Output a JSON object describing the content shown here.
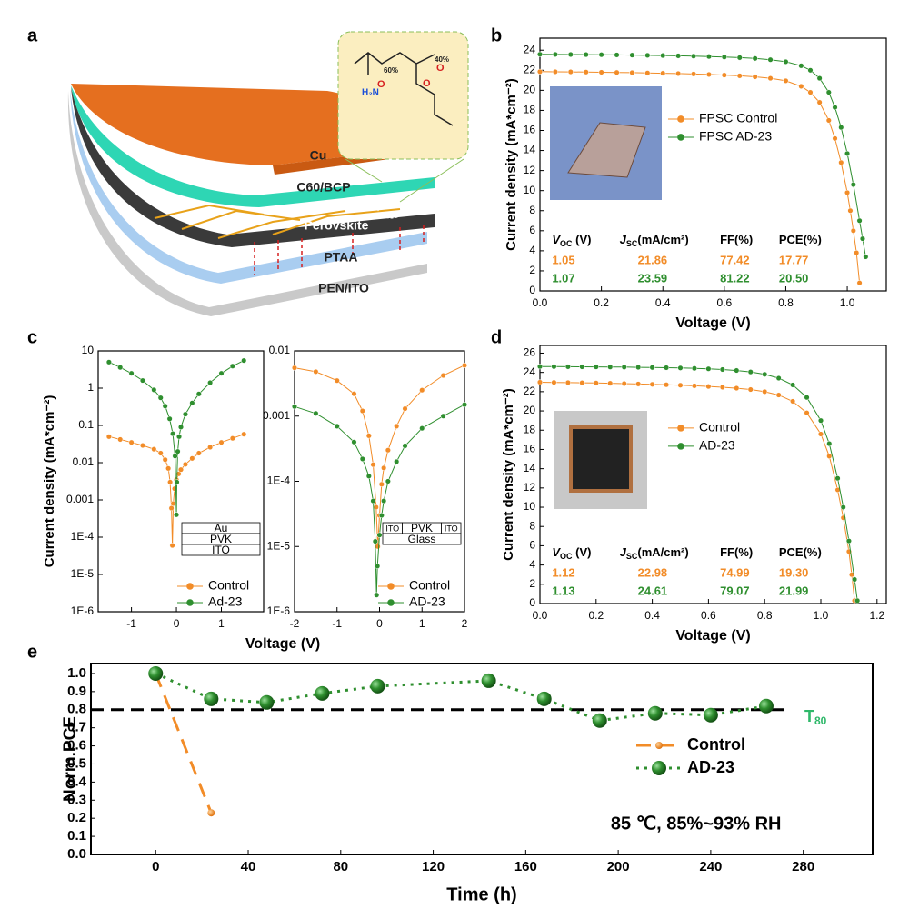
{
  "panel_labels": [
    "a",
    "b",
    "c",
    "d",
    "e"
  ],
  "diagram": {
    "layers": [
      "Cu",
      "C60/BCP",
      "Perovskite",
      "PTAA",
      "PEN/ITO"
    ],
    "molecule": [
      "60%",
      "40%",
      "H₂N",
      "O",
      "O",
      "O"
    ]
  },
  "chart_data": [
    {
      "type": "line",
      "xlabel": "Voltage (V)",
      "ylabel": "Current density (mA*cm⁻²)",
      "xlim": [
        0,
        1.127
      ],
      "ylim": [
        0,
        25.2
      ],
      "xticks": [
        {
          "value": 0,
          "label": "0.0"
        },
        0.2,
        0.4,
        0.6,
        0.8,
        {
          "value": 1,
          "label": "1.0"
        }
      ],
      "yticks": [
        0,
        2,
        4,
        6,
        8,
        10,
        12,
        14,
        16,
        18,
        20,
        22,
        24
      ],
      "legend": "center",
      "series": [
        {
          "name": "FPSC Control",
          "color": "#f28c28",
          "x": [
            0,
            0.05,
            0.1,
            0.15,
            0.2,
            0.25,
            0.3,
            0.35,
            0.4,
            0.45,
            0.5,
            0.55,
            0.6,
            0.65,
            0.7,
            0.75,
            0.8,
            0.85,
            0.88,
            0.91,
            0.94,
            0.96,
            0.98,
            1.0,
            1.01,
            1.02,
            1.03,
            1.04
          ],
          "values": [
            21.86,
            21.85,
            21.84,
            21.82,
            21.8,
            21.78,
            21.76,
            21.73,
            21.7,
            21.67,
            21.63,
            21.58,
            21.52,
            21.45,
            21.35,
            21.2,
            20.95,
            20.4,
            19.8,
            18.8,
            17.0,
            15.2,
            12.8,
            9.8,
            8.0,
            6.0,
            3.8,
            0.8
          ]
        },
        {
          "name": "FPSC AD-23",
          "color": "#2f8f2f",
          "x": [
            0,
            0.05,
            0.1,
            0.15,
            0.2,
            0.25,
            0.3,
            0.35,
            0.4,
            0.45,
            0.5,
            0.55,
            0.6,
            0.65,
            0.7,
            0.75,
            0.8,
            0.85,
            0.88,
            0.91,
            0.94,
            0.96,
            0.98,
            1.0,
            1.02,
            1.04,
            1.05,
            1.06
          ],
          "values": [
            23.59,
            23.58,
            23.57,
            23.56,
            23.55,
            23.53,
            23.51,
            23.49,
            23.47,
            23.44,
            23.41,
            23.37,
            23.32,
            23.26,
            23.18,
            23.05,
            22.85,
            22.45,
            22.0,
            21.2,
            19.8,
            18.3,
            16.3,
            13.7,
            10.6,
            7.0,
            5.2,
            3.4
          ]
        }
      ],
      "table": {
        "headers": [
          [
            "V",
            "OC",
            " (V)"
          ],
          [
            "J",
            "SC",
            "(mA/cm²)"
          ],
          [
            "FF(%)"
          ],
          [
            "PCE(%)"
          ]
        ],
        "rows": [
          {
            "color": "#f28c28",
            "cells": [
              "1.05",
              "21.86",
              "77.42",
              "17.77"
            ]
          },
          {
            "color": "#2f8f2f",
            "cells": [
              "1.07",
              "23.59",
              "81.22",
              "20.50"
            ]
          }
        ]
      }
    },
    {
      "type": "line",
      "xlabel": "Voltage (V)",
      "ylabel": "Current density (mA*cm⁻²)",
      "yscale": "log",
      "xlim": [
        -1.74,
        1.94
      ],
      "ylim": [
        1e-06,
        10
      ],
      "xticks": [
        -1,
        0,
        1
      ],
      "yticks": [
        10,
        1,
        0.1,
        0.01,
        0.001,
        {
          "value": 0.0001,
          "label": "1E-4"
        },
        {
          "value": 1e-05,
          "label": "1E-5"
        },
        {
          "value": 1e-06,
          "label": "1E-6"
        }
      ],
      "legend": "lower-right",
      "series": [
        {
          "name": "Control",
          "color": "#f28c28",
          "x": [
            -1.5,
            -1.25,
            -1,
            -0.75,
            -0.5,
            -0.35,
            -0.25,
            -0.18,
            -0.14,
            -0.11,
            -0.09,
            -0.07,
            -0.04,
            0,
            0.05,
            0.1,
            0.2,
            0.35,
            0.5,
            0.75,
            1,
            1.25,
            1.5
          ],
          "values": [
            0.05,
            0.042,
            0.035,
            0.029,
            0.023,
            0.018,
            0.012,
            0.007,
            0.003,
            0.0006,
            6e-05,
            0.0008,
            0.002,
            0.0035,
            0.005,
            0.0065,
            0.009,
            0.013,
            0.018,
            0.026,
            0.035,
            0.045,
            0.058
          ]
        },
        {
          "name": "Ad-23",
          "color": "#2f8f2f",
          "x": [
            -1.5,
            -1.25,
            -1,
            -0.75,
            -0.5,
            -0.35,
            -0.25,
            -0.15,
            -0.08,
            -0.03,
            0,
            0.01,
            0.03,
            0.06,
            0.1,
            0.2,
            0.35,
            0.5,
            0.75,
            1,
            1.25,
            1.5
          ],
          "values": [
            5,
            3.6,
            2.5,
            1.6,
            0.9,
            0.55,
            0.33,
            0.15,
            0.06,
            0.015,
            0.0004,
            0.003,
            0.02,
            0.05,
            0.09,
            0.2,
            0.4,
            0.7,
            1.4,
            2.5,
            3.9,
            5.5
          ]
        }
      ],
      "inset_stack": [
        [
          "Au"
        ],
        [
          "PVK"
        ],
        [
          "ITO"
        ]
      ]
    },
    {
      "type": "line",
      "yscale": "log",
      "xlim": [
        -2,
        2
      ],
      "ylim": [
        1e-06,
        0.01
      ],
      "xticks": [
        -2,
        -1,
        0,
        1,
        2
      ],
      "yticks": [
        0.01,
        0.001,
        {
          "value": 0.0001,
          "label": "1E-4"
        },
        {
          "value": 1e-05,
          "label": "1E-5"
        },
        {
          "value": 1e-06,
          "label": "1E-6"
        }
      ],
      "legend": "lower-right",
      "series": [
        {
          "name": "Control",
          "color": "#f28c28",
          "x": [
            -2,
            -1.5,
            -1,
            -0.6,
            -0.4,
            -0.25,
            -0.15,
            -0.08,
            -0.04,
            0,
            0.05,
            0.1,
            0.2,
            0.4,
            0.6,
            1,
            1.5,
            2
          ],
          "values": [
            0.0055,
            0.0048,
            0.0035,
            0.0022,
            0.0012,
            0.0005,
            0.00018,
            4e-05,
            1e-05,
            3e-05,
            9e-05,
            0.00016,
            0.0003,
            0.0007,
            0.0013,
            0.0025,
            0.0042,
            0.006
          ]
        },
        {
          "name": "AD-23",
          "color": "#2f8f2f",
          "x": [
            -2,
            -1.5,
            -1,
            -0.6,
            -0.4,
            -0.25,
            -0.15,
            -0.1,
            -0.07,
            -0.05,
            0,
            0.05,
            0.1,
            0.2,
            0.4,
            0.6,
            1,
            1.5,
            2
          ],
          "values": [
            0.0014,
            0.0011,
            0.0007,
            0.0004,
            0.00022,
            0.00012,
            5e-05,
            1.2e-05,
            1.8e-06,
            5e-06,
            1.5e-05,
            3e-05,
            5e-05,
            0.0001,
            0.0002,
            0.00035,
            0.00065,
            0.001,
            0.0015
          ]
        }
      ],
      "inset_stack": [
        [
          "ITO",
          "PVK",
          "ITO"
        ],
        [
          "Glass"
        ]
      ]
    },
    {
      "type": "line",
      "xlabel": "Voltage (V)",
      "ylabel": "Current density (mA*cm⁻²)",
      "xlim": [
        0,
        1.233
      ],
      "ylim": [
        0,
        26.8
      ],
      "xticks": [
        {
          "value": 0,
          "label": "0.0"
        },
        0.2,
        0.4,
        0.6,
        0.8,
        {
          "value": 1,
          "label": "1.0"
        },
        1.2
      ],
      "yticks": [
        0,
        2,
        4,
        6,
        8,
        10,
        12,
        14,
        16,
        18,
        20,
        22,
        24,
        26
      ],
      "legend": "center",
      "series": [
        {
          "name": "Control",
          "color": "#f28c28",
          "x": [
            0,
            0.05,
            0.1,
            0.15,
            0.2,
            0.25,
            0.3,
            0.35,
            0.4,
            0.45,
            0.5,
            0.55,
            0.6,
            0.65,
            0.7,
            0.75,
            0.8,
            0.85,
            0.9,
            0.95,
            1.0,
            1.03,
            1.06,
            1.08,
            1.1,
            1.11,
            1.12
          ],
          "values": [
            22.98,
            22.96,
            22.94,
            22.92,
            22.9,
            22.87,
            22.84,
            22.8,
            22.76,
            22.72,
            22.67,
            22.61,
            22.54,
            22.46,
            22.36,
            22.22,
            22.0,
            21.65,
            21.0,
            19.8,
            17.6,
            15.3,
            11.8,
            8.9,
            5.4,
            3.0,
            0.3
          ]
        },
        {
          "name": "AD-23",
          "color": "#2f8f2f",
          "x": [
            0,
            0.05,
            0.1,
            0.15,
            0.2,
            0.25,
            0.3,
            0.35,
            0.4,
            0.45,
            0.5,
            0.55,
            0.6,
            0.65,
            0.7,
            0.75,
            0.8,
            0.85,
            0.9,
            0.95,
            1.0,
            1.03,
            1.06,
            1.08,
            1.1,
            1.12,
            1.13
          ],
          "values": [
            24.61,
            24.6,
            24.59,
            24.58,
            24.57,
            24.56,
            24.55,
            24.53,
            24.51,
            24.49,
            24.46,
            24.42,
            24.37,
            24.3,
            24.2,
            24.05,
            23.8,
            23.4,
            22.7,
            21.4,
            19.0,
            16.6,
            13.0,
            10.0,
            6.5,
            2.5,
            0.3
          ]
        }
      ],
      "table": {
        "headers": [
          [
            "V",
            "OC",
            " (V)"
          ],
          [
            "J",
            "SC",
            "(mA/cm²)"
          ],
          [
            "FF(%)"
          ],
          [
            "PCE(%)"
          ]
        ],
        "rows": [
          {
            "color": "#f28c28",
            "cells": [
              "1.12",
              "22.98",
              "74.99",
              "19.30"
            ]
          },
          {
            "color": "#2f8f2f",
            "cells": [
              "1.13",
              "24.61",
              "79.07",
              "21.99"
            ]
          }
        ]
      }
    },
    {
      "type": "line",
      "xlabel": "Time (h)",
      "ylabel": "Norm.PCE",
      "xlim": [
        -28,
        310
      ],
      "ylim": [
        0,
        1.055
      ],
      "xticks": [
        0,
        40,
        80,
        120,
        160,
        200,
        240,
        280
      ],
      "yticks": [
        {
          "value": 0,
          "label": "0.0"
        },
        0.1,
        0.2,
        0.3,
        0.4,
        0.5,
        0.6,
        0.7,
        0.8,
        0.9,
        {
          "value": 1,
          "label": "1.0"
        }
      ],
      "legend": "right",
      "series": [
        {
          "name": "Control",
          "color": "#f28c28",
          "line_style": "dashed",
          "x": [
            0,
            24
          ],
          "values": [
            1.0,
            0.23
          ]
        },
        {
          "name": "AD-23",
          "color": "#2f8f2f",
          "line_style": "dotted",
          "x": [
            0,
            24,
            48,
            72,
            96,
            144,
            168,
            192,
            216,
            240,
            264
          ],
          "values": [
            1.0,
            0.86,
            0.84,
            0.89,
            0.93,
            0.96,
            0.86,
            0.74,
            0.78,
            0.77,
            0.82
          ]
        }
      ],
      "hline": {
        "value": 0.8,
        "label": "T",
        "sub": "80",
        "color": "#2fb86a"
      },
      "annotation": "85 ℃,  85%~93% RH"
    }
  ]
}
